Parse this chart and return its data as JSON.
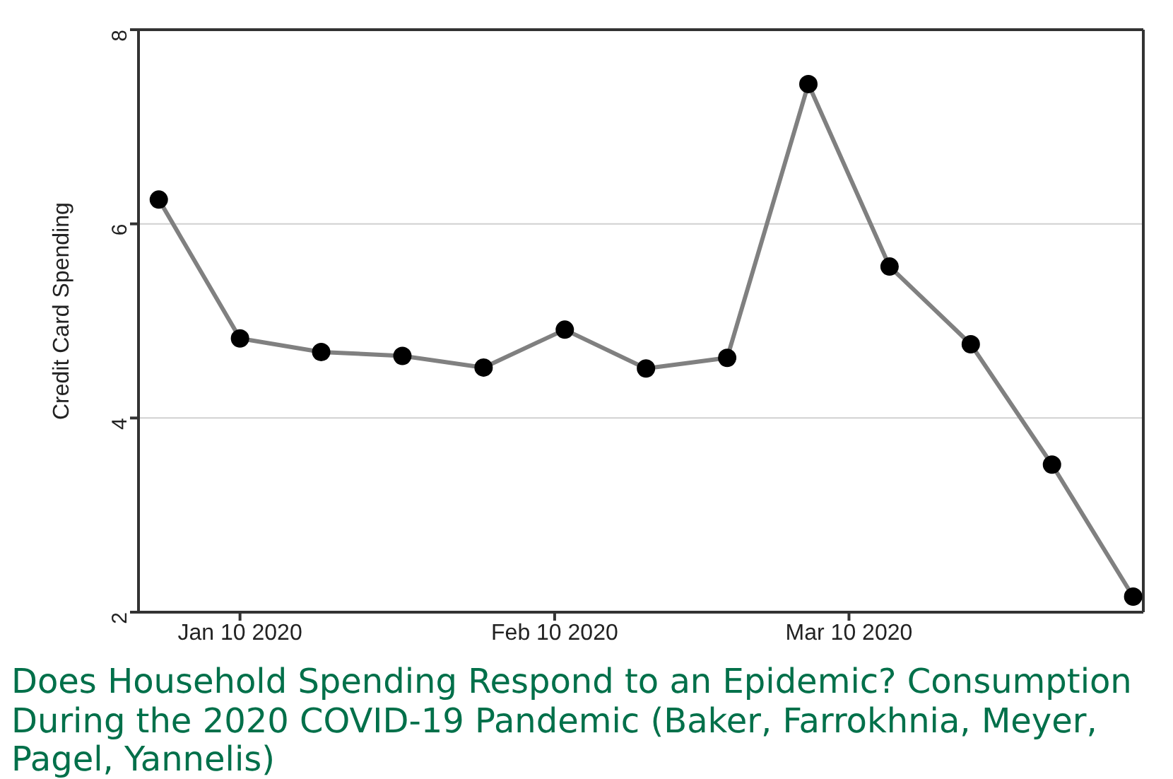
{
  "chart_data": {
    "type": "line",
    "ylabel": "Credit Card Spending",
    "x": [
      "2020-01-02",
      "2020-01-10",
      "2020-01-18",
      "2020-01-26",
      "2020-02-03",
      "2020-02-11",
      "2020-02-19",
      "2020-02-27",
      "2020-03-06",
      "2020-03-14",
      "2020-03-22",
      "2020-03-30",
      "2020-04-07"
    ],
    "series": [
      {
        "color": "#808080",
        "values": [
          6.25,
          4.82,
          4.68,
          4.64,
          4.52,
          4.91,
          4.51,
          4.62,
          7.44,
          5.56,
          4.76,
          3.52,
          2.16
        ]
      }
    ],
    "xlim": [
      "2019-12-31",
      "2020-04-08"
    ],
    "xticks": [
      {
        "value": "2020-01-10",
        "label": "Jan 10 2020"
      },
      {
        "value": "2020-02-10",
        "label": "Feb 10 2020"
      },
      {
        "value": "2020-03-10",
        "label": "Mar 10 2020"
      }
    ],
    "ylim": [
      2,
      8
    ],
    "yticks": [
      2,
      4,
      6,
      8
    ],
    "grid": "y",
    "marker": "circle",
    "line_style": "solid",
    "legend": false,
    "annotations": [
      "Does Household Spending Respond to an Epidemic? Consumption During the 2020 COVID-19 Pandemic (Baker, Farrokhnia, Meyer, Pagel, Yannelis)"
    ]
  }
}
